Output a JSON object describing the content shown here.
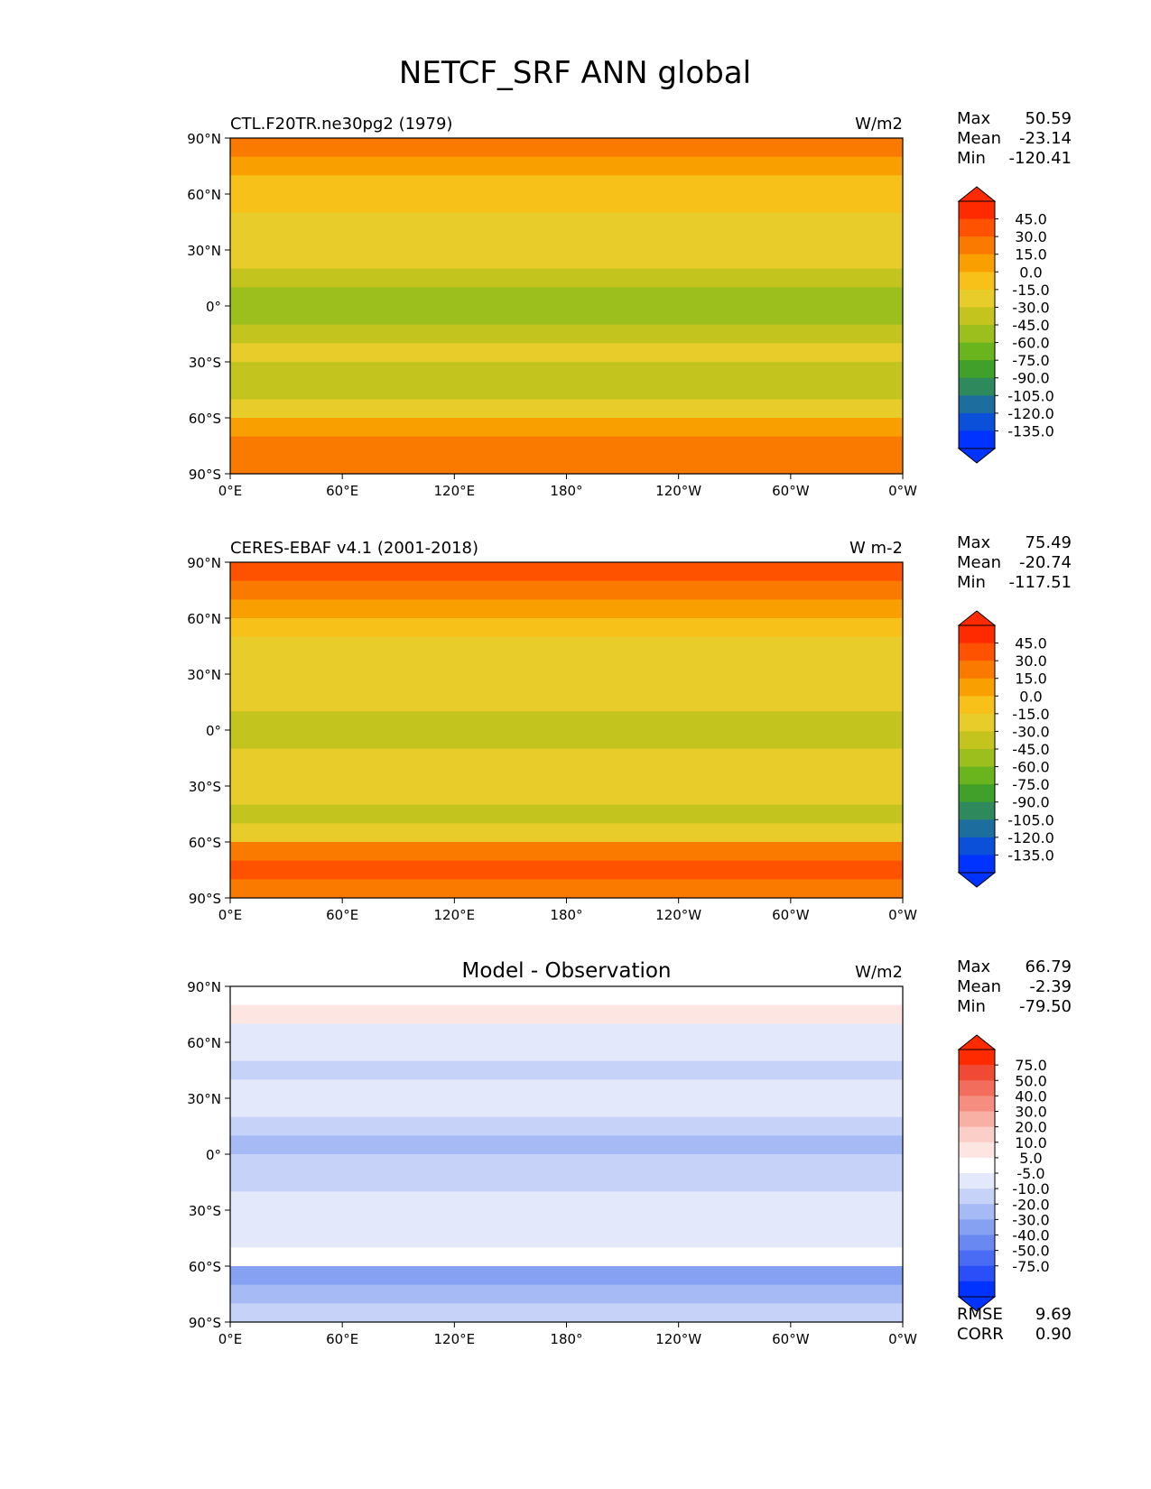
{
  "figure_title": "NETCF_SRF ANN global",
  "axes": {
    "lat_ticks": [
      "90°N",
      "60°N",
      "30°N",
      "0°",
      "30°S",
      "60°S",
      "90°S"
    ],
    "lon_ticks": [
      "0°E",
      "60°E",
      "120°E",
      "180°",
      "120°W",
      "60°W",
      "0°W"
    ]
  },
  "panels": [
    {
      "title_left": "CTL.F20TR.ne30pg2 (1979)",
      "title_center": "",
      "units": "W/m2",
      "stats": [
        {
          "label": "Max",
          "value": "50.59"
        },
        {
          "label": "Mean",
          "value": "-23.14"
        },
        {
          "label": "Min",
          "value": "-120.41"
        }
      ],
      "extra_stats": [],
      "colorbar": {
        "labels": [
          "45.0",
          "30.0",
          "15.0",
          "0.0",
          "-15.0",
          "-30.0",
          "-45.0",
          "-60.0",
          "-75.0",
          "-90.0",
          "-105.0",
          "-120.0",
          "-135.0"
        ],
        "colors": [
          "#ff2a00",
          "#ff5200",
          "#fa7a00",
          "#fa9f00",
          "#f7c11a",
          "#e8cc2a",
          "#c4c41e",
          "#9cbf1e",
          "#6ab41e",
          "#3fa02a",
          "#2e8a5c",
          "#1d6e9e",
          "#0b50d8",
          "#0033ff"
        ],
        "over_color": "#ff2a00",
        "under_color": "#0033ff"
      },
      "lat_bands": [
        {
          "lat": 85,
          "value": 25
        },
        {
          "lat": 75,
          "value": 10
        },
        {
          "lat": 65,
          "value": -5
        },
        {
          "lat": 55,
          "value": -15
        },
        {
          "lat": 45,
          "value": -25
        },
        {
          "lat": 35,
          "value": -28
        },
        {
          "lat": 25,
          "value": -30
        },
        {
          "lat": 15,
          "value": -40
        },
        {
          "lat": 5,
          "value": -55
        },
        {
          "lat": -5,
          "value": -50
        },
        {
          "lat": -15,
          "value": -38
        },
        {
          "lat": -25,
          "value": -30
        },
        {
          "lat": -35,
          "value": -32
        },
        {
          "lat": -45,
          "value": -38
        },
        {
          "lat": -55,
          "value": -20
        },
        {
          "lat": -65,
          "value": 5
        },
        {
          "lat": -75,
          "value": 15
        },
        {
          "lat": -85,
          "value": 20
        }
      ]
    },
    {
      "title_left": "CERES-EBAF v4.1 (2001-2018)",
      "title_center": "",
      "units": "W m-2",
      "stats": [
        {
          "label": "Max",
          "value": "75.49"
        },
        {
          "label": "Mean",
          "value": "-20.74"
        },
        {
          "label": "Min",
          "value": "-117.51"
        }
      ],
      "extra_stats": [],
      "colorbar": {
        "labels": [
          "45.0",
          "30.0",
          "15.0",
          "0.0",
          "-15.0",
          "-30.0",
          "-45.0",
          "-60.0",
          "-75.0",
          "-90.0",
          "-105.0",
          "-120.0",
          "-135.0"
        ],
        "colors": [
          "#ff2a00",
          "#ff5200",
          "#fa7a00",
          "#fa9f00",
          "#f7c11a",
          "#e8cc2a",
          "#c4c41e",
          "#9cbf1e",
          "#6ab41e",
          "#3fa02a",
          "#2e8a5c",
          "#1d6e9e",
          "#0b50d8",
          "#0033ff"
        ],
        "over_color": "#ff2a00",
        "under_color": "#0033ff"
      },
      "lat_bands": [
        {
          "lat": 85,
          "value": 30
        },
        {
          "lat": 75,
          "value": 15
        },
        {
          "lat": 65,
          "value": 0
        },
        {
          "lat": 55,
          "value": -10
        },
        {
          "lat": 45,
          "value": -20
        },
        {
          "lat": 35,
          "value": -25
        },
        {
          "lat": 25,
          "value": -28
        },
        {
          "lat": 15,
          "value": -30
        },
        {
          "lat": 5,
          "value": -40
        },
        {
          "lat": -5,
          "value": -38
        },
        {
          "lat": -15,
          "value": -30
        },
        {
          "lat": -25,
          "value": -25
        },
        {
          "lat": -35,
          "value": -30
        },
        {
          "lat": -45,
          "value": -38
        },
        {
          "lat": -55,
          "value": -20
        },
        {
          "lat": -65,
          "value": 15
        },
        {
          "lat": -75,
          "value": 30
        },
        {
          "lat": -85,
          "value": 25
        }
      ]
    },
    {
      "title_left": "",
      "title_center": "Model - Observation",
      "units": "W/m2",
      "stats": [
        {
          "label": "Max",
          "value": "66.79"
        },
        {
          "label": "Mean",
          "value": "-2.39"
        },
        {
          "label": "Min",
          "value": "-79.50"
        }
      ],
      "extra_stats": [
        {
          "label": "RMSE",
          "value": "9.69"
        },
        {
          "label": "CORR",
          "value": "0.90"
        }
      ],
      "colorbar": {
        "labels": [
          "75.0",
          "50.0",
          "40.0",
          "30.0",
          "20.0",
          "10.0",
          "5.0",
          "-5.0",
          "-10.0",
          "-20.0",
          "-30.0",
          "-40.0",
          "-50.0",
          "-75.0"
        ],
        "colors": [
          "#ff2a00",
          "#f04a35",
          "#f26d5c",
          "#f58e80",
          "#f8afa4",
          "#fbcfc7",
          "#fde6e2",
          "#ffffff",
          "#e3e8fb",
          "#c6d2f8",
          "#a6baf5",
          "#87a1f2",
          "#6a88f2",
          "#4a6cf5",
          "#2a4ff8",
          "#0033ff"
        ],
        "over_color": "#ff2a00",
        "under_color": "#0033ff"
      },
      "lat_bands": [
        {
          "lat": 85,
          "value": 8
        },
        {
          "lat": 75,
          "value": 10
        },
        {
          "lat": 65,
          "value": 0
        },
        {
          "lat": 55,
          "value": -3
        },
        {
          "lat": 45,
          "value": -8
        },
        {
          "lat": 35,
          "value": -5
        },
        {
          "lat": 25,
          "value": -3
        },
        {
          "lat": 15,
          "value": -10
        },
        {
          "lat": 5,
          "value": -12
        },
        {
          "lat": -5,
          "value": -8
        },
        {
          "lat": -15,
          "value": -6
        },
        {
          "lat": -25,
          "value": -3
        },
        {
          "lat": -35,
          "value": -2
        },
        {
          "lat": -45,
          "value": 3
        },
        {
          "lat": -55,
          "value": 8
        },
        {
          "lat": -65,
          "value": -25
        },
        {
          "lat": -75,
          "value": -15
        },
        {
          "lat": -85,
          "value": -10
        }
      ]
    }
  ],
  "chart_data": [
    {
      "type": "heatmap",
      "title": "CTL.F20TR.ne30pg2 (1979)",
      "units": "W/m2",
      "x_ticks": [
        "0°E",
        "60°E",
        "120°E",
        "180°",
        "120°W",
        "60°W",
        "0°W"
      ],
      "y_ticks": [
        "90°N",
        "60°N",
        "30°N",
        "0°",
        "30°S",
        "60°S",
        "90°S"
      ],
      "xlim": [
        0,
        360
      ],
      "ylim": [
        -90,
        90
      ],
      "levels": [
        -135,
        -120,
        -105,
        -90,
        -75,
        -60,
        -45,
        -30,
        -15,
        0,
        15,
        30,
        45
      ],
      "max": 50.59,
      "mean": -23.14,
      "min": -120.41
    },
    {
      "type": "heatmap",
      "title": "CERES-EBAF v4.1 (2001-2018)",
      "units": "W m-2",
      "x_ticks": [
        "0°E",
        "60°E",
        "120°E",
        "180°",
        "120°W",
        "60°W",
        "0°W"
      ],
      "y_ticks": [
        "90°N",
        "60°N",
        "30°N",
        "0°",
        "30°S",
        "60°S",
        "90°S"
      ],
      "xlim": [
        0,
        360
      ],
      "ylim": [
        -90,
        90
      ],
      "levels": [
        -135,
        -120,
        -105,
        -90,
        -75,
        -60,
        -45,
        -30,
        -15,
        0,
        15,
        30,
        45
      ],
      "max": 75.49,
      "mean": -20.74,
      "min": -117.51
    },
    {
      "type": "heatmap",
      "title": "Model - Observation",
      "units": "W/m2",
      "x_ticks": [
        "0°E",
        "60°E",
        "120°E",
        "180°",
        "120°W",
        "60°W",
        "0°W"
      ],
      "y_ticks": [
        "90°N",
        "60°N",
        "30°N",
        "0°",
        "30°S",
        "60°S",
        "90°S"
      ],
      "xlim": [
        0,
        360
      ],
      "ylim": [
        -90,
        90
      ],
      "levels": [
        -75,
        -50,
        -40,
        -30,
        -20,
        -10,
        -5,
        5,
        10,
        20,
        30,
        40,
        50,
        75
      ],
      "max": 66.79,
      "mean": -2.39,
      "min": -79.5,
      "rmse": 9.69,
      "corr": 0.9
    }
  ]
}
